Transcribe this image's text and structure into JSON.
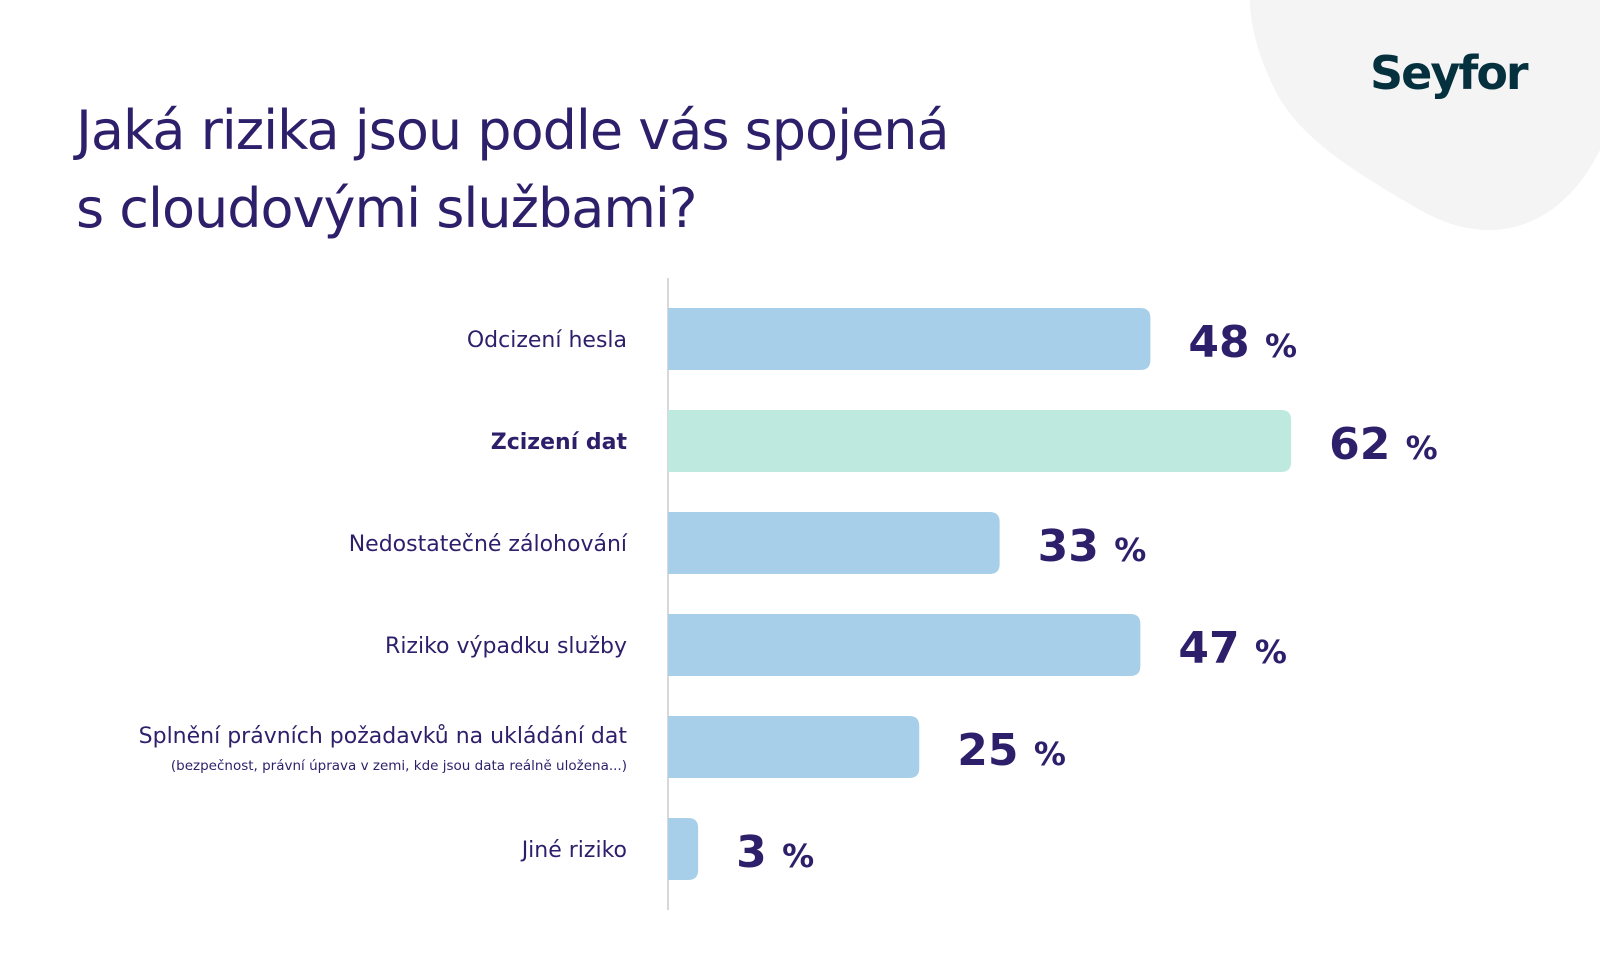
{
  "logo": {
    "text": "Seyfor"
  },
  "title_line1": "Jaká rizika jsou podle vás spojená",
  "title_line2": "s cloudovými službami?",
  "colors": {
    "bar": "#a8cfe9",
    "highlight": "#bde9df",
    "text": "#2e1f6b",
    "logo": "#05313f",
    "blob": "#f4f4f5"
  },
  "chart_data": {
    "type": "bar",
    "orientation": "horizontal",
    "title": "Jaká rizika jsou podle vás spojená s cloudovými službami?",
    "categories": [
      "Odcizení hesla",
      "Zcizení dat",
      "Nedostatečné zálohování",
      "Riziko výpadku služby",
      "Splnění právních požadavků na ukládání dat",
      "Jiné riziko"
    ],
    "subtitles": [
      "",
      "",
      "",
      "",
      "(bezpečnost, právní úprava v zemi, kde jsou data reálně uložena...)",
      ""
    ],
    "values": [
      48,
      62,
      33,
      47,
      25,
      3
    ],
    "unit": "%",
    "highlighted": "Zcizení dat",
    "xlim": [
      0,
      100
    ],
    "grid": false,
    "legend": "none"
  }
}
